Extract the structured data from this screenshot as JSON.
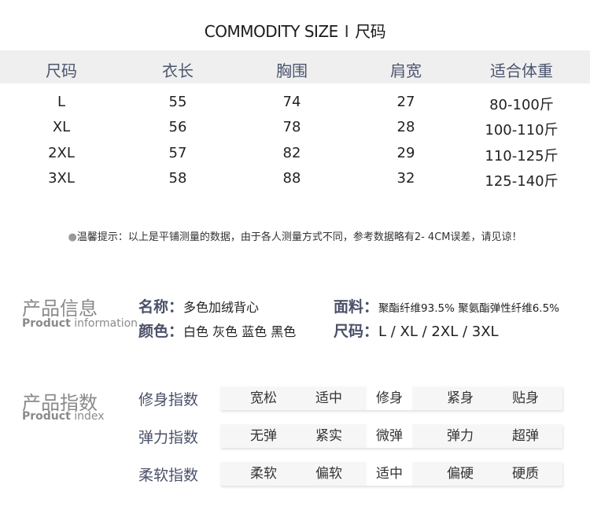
{
  "title": {
    "en": "COMMODITY SIZE",
    "separator": "I",
    "zh": "尺码"
  },
  "size_table": {
    "headers": [
      "尺码",
      "衣长",
      "胸围",
      "肩宽",
      "适合体重"
    ],
    "rows": [
      [
        "L",
        "55",
        "74",
        "27",
        "80-100斤"
      ],
      [
        "XL",
        "56",
        "78",
        "28",
        "100-110斤"
      ],
      [
        "2XL",
        "57",
        "82",
        "29",
        "110-125斤"
      ],
      [
        "3XL",
        "58",
        "88",
        "32",
        "125-140斤"
      ]
    ]
  },
  "note": {
    "bullet": "●",
    "text": "温馨提示：以上是平铺测量的数据，由于各人测量方式不同，参考数据略有2- 4CM误差，请见谅！"
  },
  "product_info": {
    "heading_zh": "产品信息",
    "heading_en_bold": "Product",
    "heading_en": " information",
    "name_label": "名称：",
    "name_value": "多色加绒背心",
    "fabric_label": "面料：",
    "fabric_value": "聚酯纤维93.5% 聚氨酯弹性纤维6.5%",
    "color_label": "颜色：",
    "color_value": "白色 灰色 蓝色 黑色",
    "size_label": "尺码：",
    "size_value": "L / XL / 2XL / 3XL"
  },
  "product_index": {
    "heading_zh": "产品指数",
    "heading_en_bold": "Product",
    "heading_en": " index",
    "rows": [
      {
        "label": "修身指数",
        "options": [
          "宽松",
          "适中",
          "修身",
          "紧身",
          "贴身"
        ],
        "selected": "修身"
      },
      {
        "label": "弹力指数",
        "options": [
          "无弹",
          "紧实",
          "微弹",
          "弹力",
          "超弹"
        ],
        "selected": "微弹"
      },
      {
        "label": "柔软指数",
        "options": [
          "柔软",
          "偏软",
          "适中",
          "偏硬",
          "硬质"
        ],
        "selected": "适中"
      }
    ]
  },
  "colors": {
    "label": "#4a5068",
    "header_bg": "#efefef",
    "bar_bg": "#f6f6f6"
  }
}
